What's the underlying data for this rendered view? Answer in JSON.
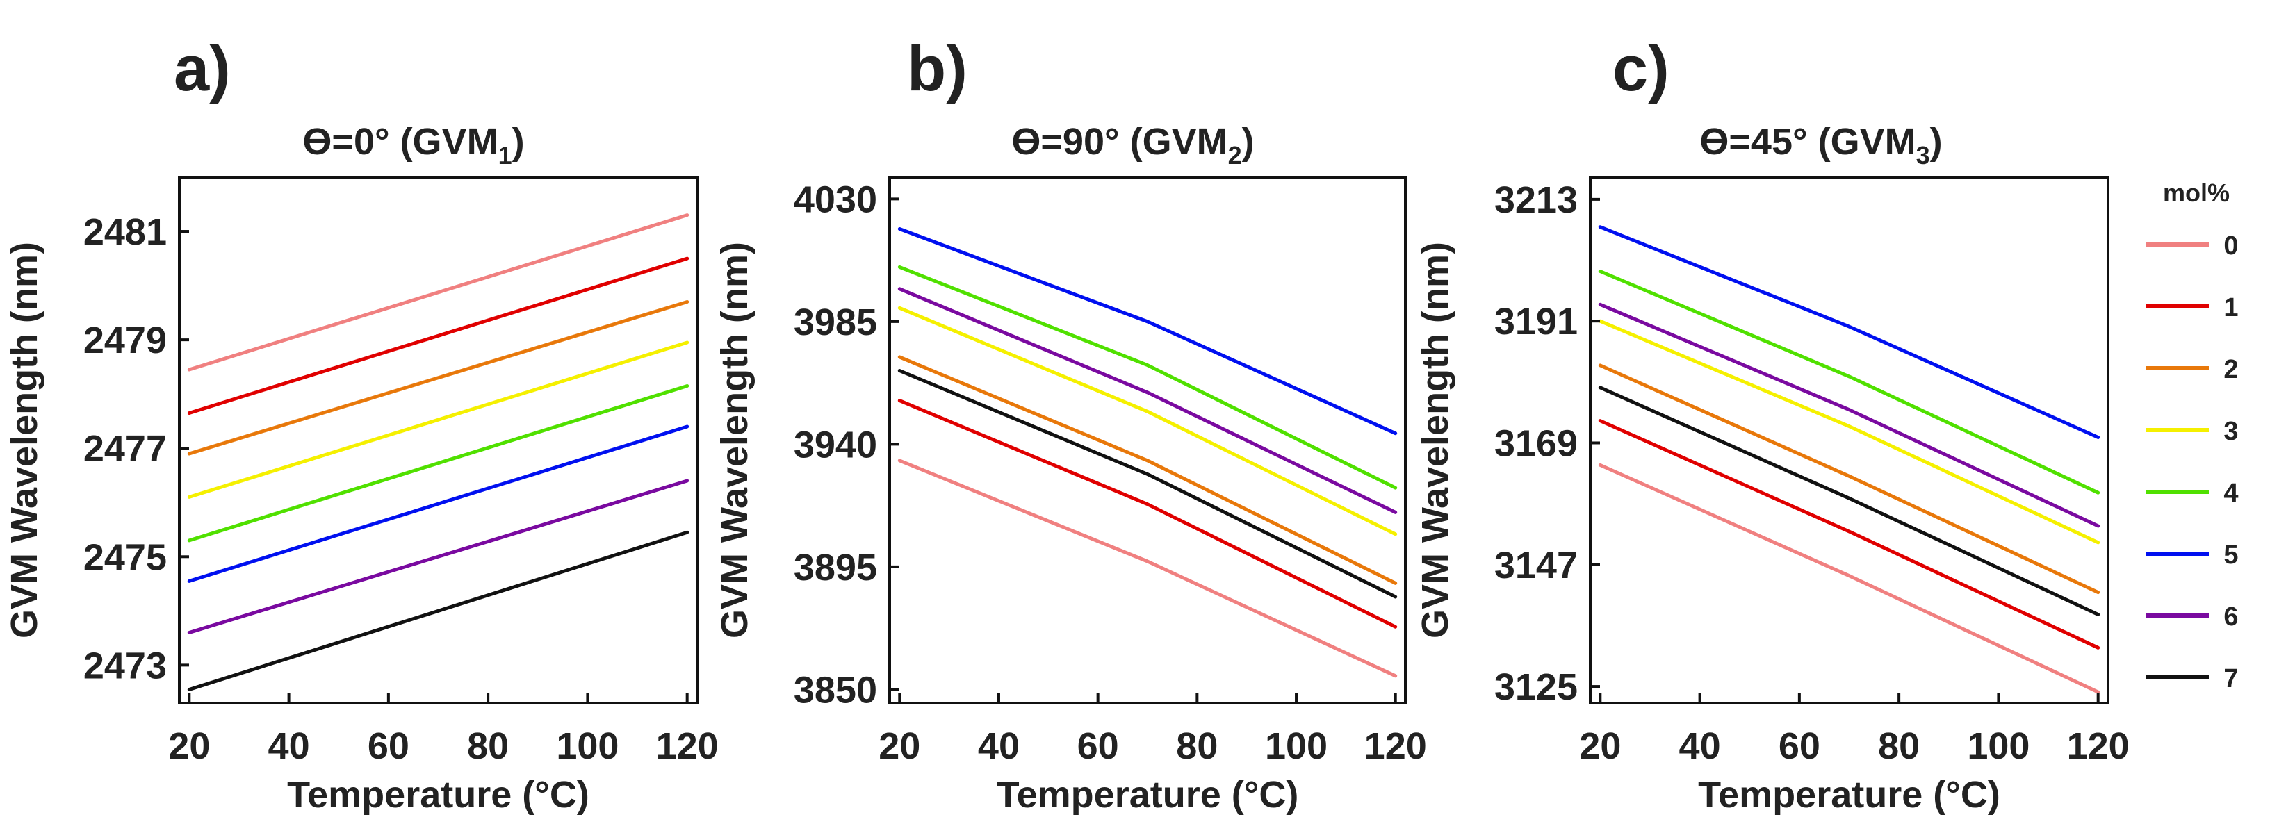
{
  "chart_data": [
    {
      "type": "line",
      "panel_label": "a)",
      "title": {
        "prefix": "ϴ=0° (GVM",
        "sub": "1",
        "suffix": ")"
      },
      "xlabel": "Temperature (°C)",
      "ylabel": "GVM Wavelength (nm)",
      "xlim": [
        18,
        122
      ],
      "ylim": [
        2472.3,
        2482.0
      ],
      "xticks": [
        20,
        40,
        60,
        80,
        100,
        120
      ],
      "yticks": [
        2473,
        2475,
        2477,
        2479,
        2481
      ],
      "series": [
        {
          "name": "0",
          "color": "#f08080",
          "x": [
            20,
            120
          ],
          "y": [
            2478.45,
            2481.3
          ]
        },
        {
          "name": "1",
          "color": "#e00000",
          "x": [
            20,
            120
          ],
          "y": [
            2477.65,
            2480.5
          ]
        },
        {
          "name": "2",
          "color": "#e8780a",
          "x": [
            20,
            120
          ],
          "y": [
            2476.9,
            2479.7
          ]
        },
        {
          "name": "3",
          "color": "#f5f000",
          "x": [
            20,
            120
          ],
          "y": [
            2476.1,
            2478.95
          ]
        },
        {
          "name": "4",
          "color": "#50e000",
          "x": [
            20,
            120
          ],
          "y": [
            2475.3,
            2478.15
          ]
        },
        {
          "name": "5",
          "color": "#0010f0",
          "x": [
            20,
            120
          ],
          "y": [
            2474.55,
            2477.4
          ]
        },
        {
          "name": "6",
          "color": "#7a0aa0",
          "x": [
            20,
            120
          ],
          "y": [
            2473.6,
            2476.4
          ]
        },
        {
          "name": "7",
          "color": "#111111",
          "x": [
            20,
            120
          ],
          "y": [
            2472.55,
            2475.45
          ]
        }
      ]
    },
    {
      "type": "line",
      "panel_label": "b)",
      "title": {
        "prefix": "ϴ=90° (GVM",
        "sub": "2",
        "suffix": ")"
      },
      "xlabel": "Temperature (°C)",
      "ylabel": "GVM Wavelength (nm)",
      "xlim": [
        18,
        122
      ],
      "ylim": [
        3845,
        4038
      ],
      "xticks": [
        20,
        40,
        60,
        80,
        100,
        120
      ],
      "yticks": [
        3850,
        3895,
        3940,
        3985,
        4030
      ],
      "series": [
        {
          "name": "0",
          "color": "#f08080",
          "x": [
            20,
            70,
            120
          ],
          "y": [
            3934,
            3897,
            3855
          ]
        },
        {
          "name": "1",
          "color": "#e00000",
          "x": [
            20,
            70,
            120
          ],
          "y": [
            3956,
            3918,
            3873
          ]
        },
        {
          "name": "2",
          "color": "#e8780a",
          "x": [
            20,
            70,
            120
          ],
          "y": [
            3972,
            3934,
            3889
          ]
        },
        {
          "name": "3",
          "color": "#f5f000",
          "x": [
            20,
            70,
            120
          ],
          "y": [
            3990,
            3952,
            3907
          ]
        },
        {
          "name": "4",
          "color": "#50e000",
          "x": [
            20,
            70,
            120
          ],
          "y": [
            4005,
            3969,
            3924
          ]
        },
        {
          "name": "5",
          "color": "#0010f0",
          "x": [
            20,
            70,
            120
          ],
          "y": [
            4019,
            3985,
            3944
          ]
        },
        {
          "name": "6",
          "color": "#7a0aa0",
          "x": [
            20,
            70,
            120
          ],
          "y": [
            3997,
            3959,
            3915
          ]
        },
        {
          "name": "7",
          "color": "#111111",
          "x": [
            20,
            70,
            120
          ],
          "y": [
            3967,
            3929,
            3884
          ]
        }
      ]
    },
    {
      "type": "line",
      "panel_label": "c)",
      "title": {
        "prefix": "ϴ=45°  (GVM",
        "sub": "3",
        "suffix": ")"
      },
      "xlabel": "Temperature (°C)",
      "ylabel": "GVM Wavelength (nm)",
      "xlim": [
        18,
        122
      ],
      "ylim": [
        3122,
        3217
      ],
      "xticks": [
        20,
        40,
        60,
        80,
        100,
        120
      ],
      "yticks": [
        3125,
        3147,
        3169,
        3191,
        3213
      ],
      "series": [
        {
          "name": "0",
          "color": "#f08080",
          "x": [
            20,
            70,
            120
          ],
          "y": [
            3165,
            3145,
            3124
          ]
        },
        {
          "name": "1",
          "color": "#e00000",
          "x": [
            20,
            70,
            120
          ],
          "y": [
            3173,
            3153,
            3132
          ]
        },
        {
          "name": "2",
          "color": "#e8780a",
          "x": [
            20,
            70,
            120
          ],
          "y": [
            3183,
            3163,
            3142
          ]
        },
        {
          "name": "3",
          "color": "#f5f000",
          "x": [
            20,
            70,
            120
          ],
          "y": [
            3191,
            3172,
            3151
          ]
        },
        {
          "name": "4",
          "color": "#50e000",
          "x": [
            20,
            70,
            120
          ],
          "y": [
            3200,
            3181,
            3160
          ]
        },
        {
          "name": "5",
          "color": "#0010f0",
          "x": [
            20,
            70,
            120
          ],
          "y": [
            3208,
            3190,
            3170
          ]
        },
        {
          "name": "6",
          "color": "#7a0aa0",
          "x": [
            20,
            70,
            120
          ],
          "y": [
            3194,
            3175,
            3154
          ]
        },
        {
          "name": "7",
          "color": "#111111",
          "x": [
            20,
            70,
            120
          ],
          "y": [
            3179,
            3159,
            3138
          ]
        }
      ]
    }
  ],
  "legend": {
    "title": "mol%",
    "placement": "right",
    "entries": [
      {
        "label": "0",
        "color": "#f08080"
      },
      {
        "label": "1",
        "color": "#e00000"
      },
      {
        "label": "2",
        "color": "#e8780a"
      },
      {
        "label": "3",
        "color": "#f5f000"
      },
      {
        "label": "4",
        "color": "#50e000"
      },
      {
        "label": "5",
        "color": "#0010f0"
      },
      {
        "label": "6",
        "color": "#7a0aa0"
      },
      {
        "label": "7",
        "color": "#111111"
      }
    ]
  }
}
